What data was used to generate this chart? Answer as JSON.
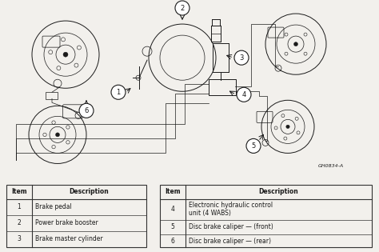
{
  "bg_color": "#f2f0ec",
  "line_color": "#1a1a1a",
  "text_color": "#1a1a1a",
  "table_border": "#333333",
  "title_ref": "GH0834-A",
  "label_fontsize": 5.5,
  "ref_fontsize": 4.5,
  "table1": {
    "rows": [
      [
        "1",
        "Brake pedal"
      ],
      [
        "2",
        "Power brake booster"
      ],
      [
        "3",
        "Brake master cylinder"
      ]
    ]
  },
  "table2": {
    "rows": [
      [
        "4",
        "Electronic hydraulic control\nunit (4 WABS)"
      ],
      [
        "5",
        "Disc brake caliper — (front)"
      ],
      [
        "6",
        "Disc brake caliper — (rear)"
      ]
    ]
  }
}
